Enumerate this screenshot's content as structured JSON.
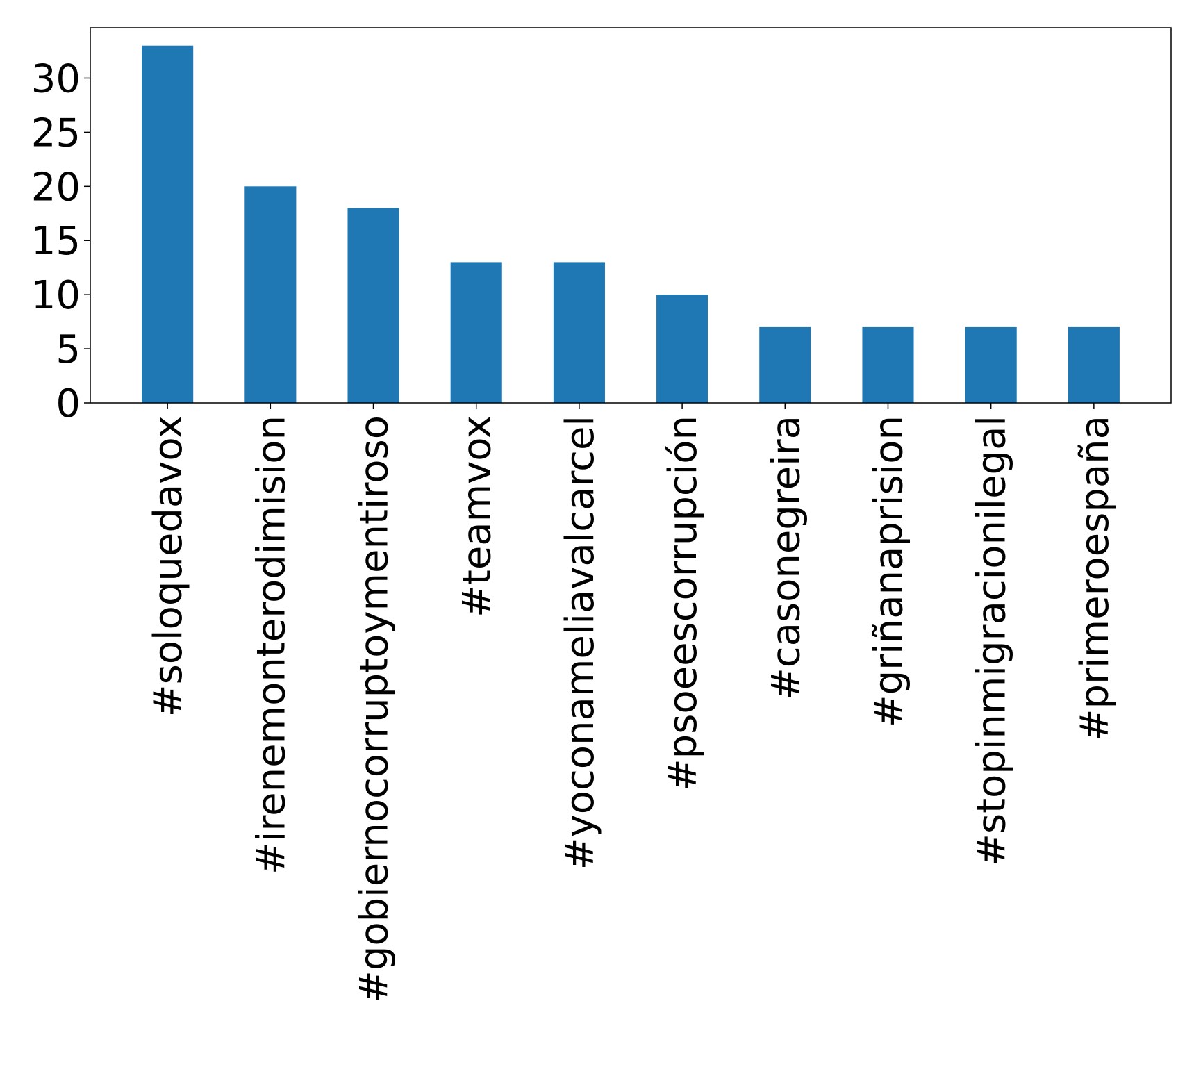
{
  "chart_data": {
    "type": "bar",
    "title": "",
    "xlabel": "",
    "ylabel": "",
    "categories": [
      "#soloquedavox",
      "#irenemonterodimision",
      "#gobiernocorruptoymentiroso",
      "#teamvox",
      "#yoconameliavalcarcel",
      "#psoeescorrupción",
      "#casonegreira",
      "#griñanaprision",
      "#stopinmigracionilegal",
      "#primeroespaña"
    ],
    "values": [
      33,
      20,
      18,
      13,
      13,
      10,
      7,
      7,
      7,
      7
    ],
    "ylim": [
      0,
      34.65
    ],
    "yticks": [
      0,
      5,
      10,
      15,
      20,
      25,
      30
    ],
    "bar_color": "#1f77b4",
    "grid": false,
    "legend": "none"
  }
}
